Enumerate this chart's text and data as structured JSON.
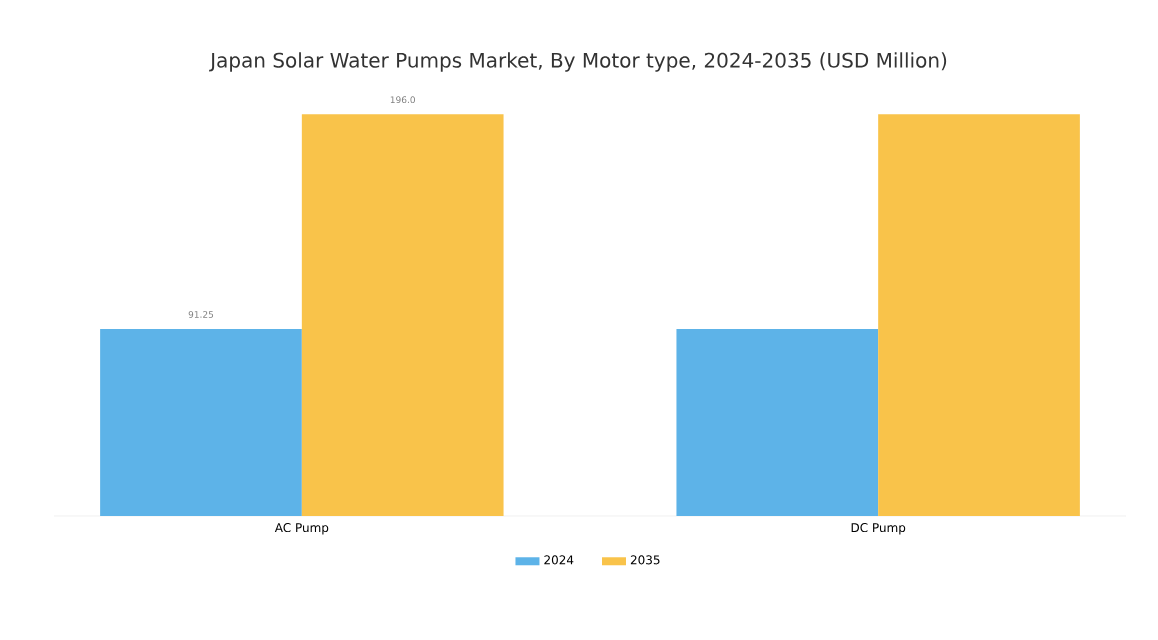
{
  "chart_data": {
    "type": "bar",
    "title": "Japan Solar Water Pumps Market, By Motor type, 2024-2035 (USD Million)",
    "categories": [
      "AC Pump",
      "DC Pump"
    ],
    "series": [
      {
        "name": "2024",
        "color": "#5db3e8",
        "values": [
          91.25,
          91.25
        ],
        "value_labels": [
          "91.25",
          null
        ]
      },
      {
        "name": "2035",
        "color": "#f9c34a",
        "values": [
          196.0,
          196.0
        ],
        "value_labels": [
          "196.0",
          null
        ]
      }
    ],
    "legend": "bottom",
    "grid": false
  }
}
